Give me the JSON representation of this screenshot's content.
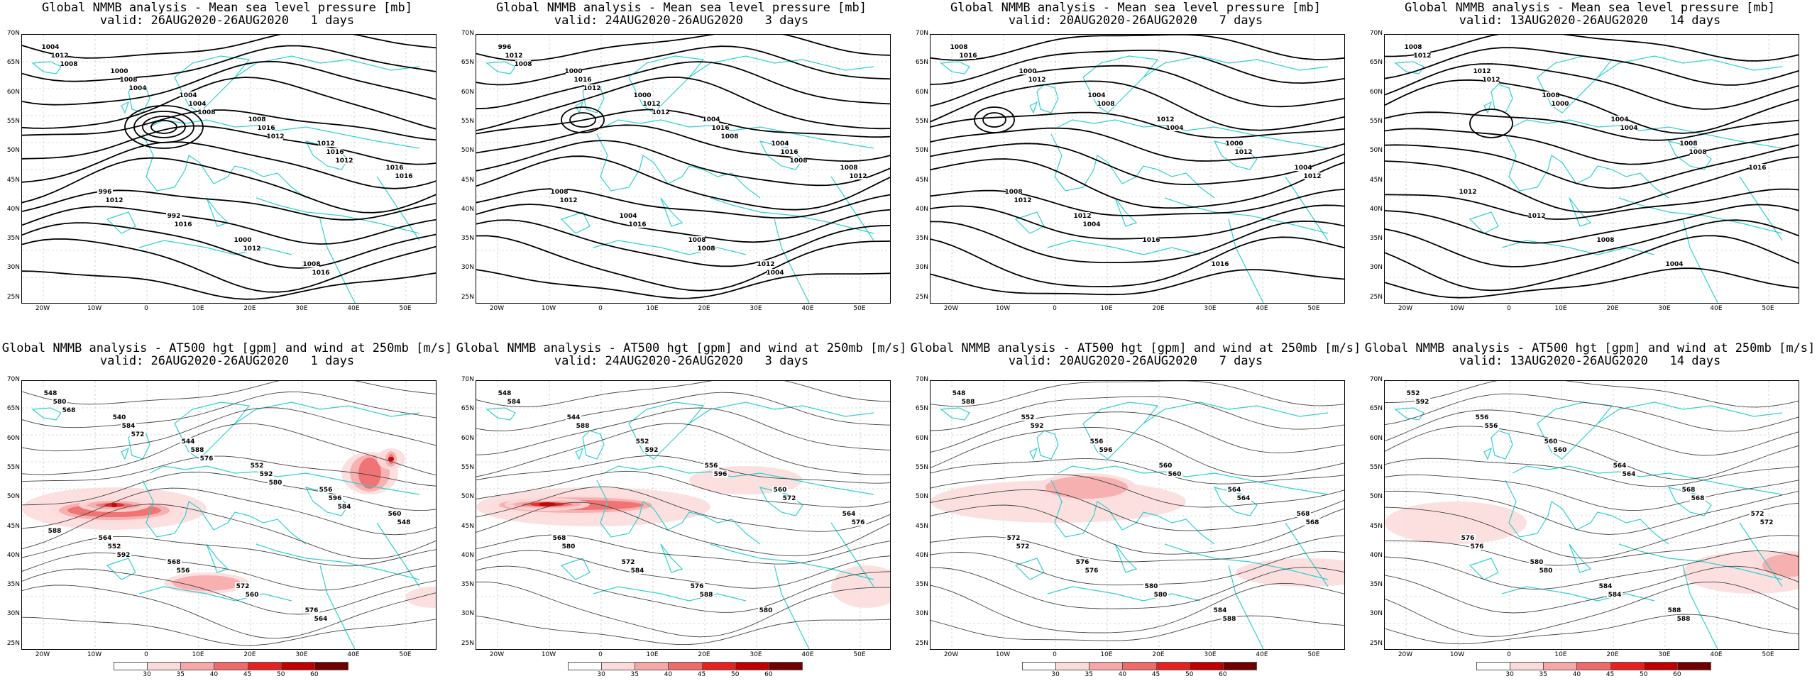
{
  "grid": {
    "lat_labels": [
      "70N",
      "65N",
      "60N",
      "55N",
      "50N",
      "45N",
      "40N",
      "35N",
      "30N",
      "25N"
    ],
    "lon_labels": [
      "20W",
      "10W",
      "0",
      "10E",
      "20E",
      "30E",
      "40E",
      "50E"
    ]
  },
  "colors": {
    "coast": "#30d0d0",
    "contour": "#000000",
    "wind_scale": [
      "#ffffff",
      "#fbdada",
      "#f6a8a8",
      "#ef6a6a",
      "#e52222",
      "#c00000",
      "#700000"
    ]
  },
  "colorbar": {
    "ticks": [
      "30",
      "35",
      "40",
      "45",
      "50",
      "60"
    ]
  },
  "panels_top": [
    {
      "title": "Global NMMB analysis - Mean sea level pressure [mb]",
      "subtitle": "valid: 26AUG2020-26AUG2020   1 days",
      "labels": [
        "1004",
        "1000",
        "1004",
        "1008",
        "1012",
        "1016",
        "996",
        "992",
        "1000",
        "1008",
        "1012",
        "1008",
        "1004",
        "1016",
        "1016",
        "1016",
        "1012",
        "1016",
        "1012",
        "1016",
        "1008",
        "1004",
        "1008",
        "1012",
        "1012"
      ]
    },
    {
      "title": "Global NMMB analysis - Mean sea level pressure [mb]",
      "subtitle": "valid: 24AUG2020-26AUG2020   3 days",
      "labels": [
        "996",
        "1000",
        "1000",
        "1004",
        "1004",
        "1008",
        "1008",
        "1004",
        "1008",
        "1012",
        "1012",
        "1016",
        "1012",
        "1016",
        "1016",
        "1012",
        "1012",
        "1016",
        "1008",
        "1004",
        "1008",
        "1012",
        "1012",
        "1008",
        "1008"
      ]
    },
    {
      "title": "Global NMMB analysis - Mean sea level pressure [mb]",
      "subtitle": "valid: 20AUG2020-26AUG2020   7 days",
      "labels": [
        "1008",
        "1000",
        "1004",
        "1012",
        "1000",
        "1004",
        "1008",
        "1012",
        "1016",
        "1016",
        "1016",
        "1012",
        "1008",
        "1004",
        "1012",
        "1012",
        "1012",
        "1004"
      ]
    },
    {
      "title": "Global NMMB analysis - Mean sea level pressure [mb]",
      "subtitle": "valid: 13AUG2020-26AUG2020   14 days",
      "labels": [
        "1008",
        "1012",
        "1008",
        "1004",
        "1008",
        "1016",
        "1012",
        "1012",
        "1008",
        "1004",
        "1012",
        "1012",
        "1000",
        "1004",
        "1008"
      ]
    }
  ],
  "panels_bottom": [
    {
      "title": "Global NMMB analysis - AT500 hgt [gpm] and wind at 250mb [m/s]",
      "subtitle": "valid: 26AUG2020-26AUG2020   1 days",
      "labels": [
        "548",
        "540",
        "544",
        "552",
        "556",
        "560",
        "564",
        "568",
        "572",
        "576",
        "580",
        "584",
        "588",
        "592",
        "596",
        "548",
        "552",
        "556",
        "560",
        "564",
        "568",
        "572",
        "576",
        "580",
        "584",
        "588",
        "592"
      ]
    },
    {
      "title": "Global NMMB analysis - AT500 hgt [gpm] and wind at 250mb [m/s]",
      "subtitle": "valid: 24AUG2020-26AUG2020   3 days",
      "labels": [
        "548",
        "544",
        "552",
        "556",
        "560",
        "564",
        "568",
        "572",
        "576",
        "580",
        "584",
        "588",
        "592",
        "596",
        "572",
        "576",
        "580",
        "584",
        "588"
      ]
    },
    {
      "title": "Global NMMB analysis - AT500 hgt [gpm] and wind at 250mb [m/s]",
      "subtitle": "valid: 20AUG2020-26AUG2020   7 days",
      "labels": [
        "548",
        "552",
        "556",
        "560",
        "564",
        "568",
        "572",
        "576",
        "580",
        "584",
        "588",
        "592",
        "596",
        "560",
        "564",
        "568",
        "572",
        "576",
        "580",
        "588"
      ]
    },
    {
      "title": "Global NMMB analysis - AT500 hgt [gpm] and wind at 250mb [m/s]",
      "subtitle": "valid: 13AUG2020-26AUG2020   14 days",
      "labels": [
        "552",
        "556",
        "560",
        "564",
        "568",
        "572",
        "576",
        "580",
        "584",
        "588",
        "592",
        "556",
        "560",
        "564",
        "568",
        "572",
        "576",
        "580",
        "584",
        "588"
      ]
    }
  ]
}
